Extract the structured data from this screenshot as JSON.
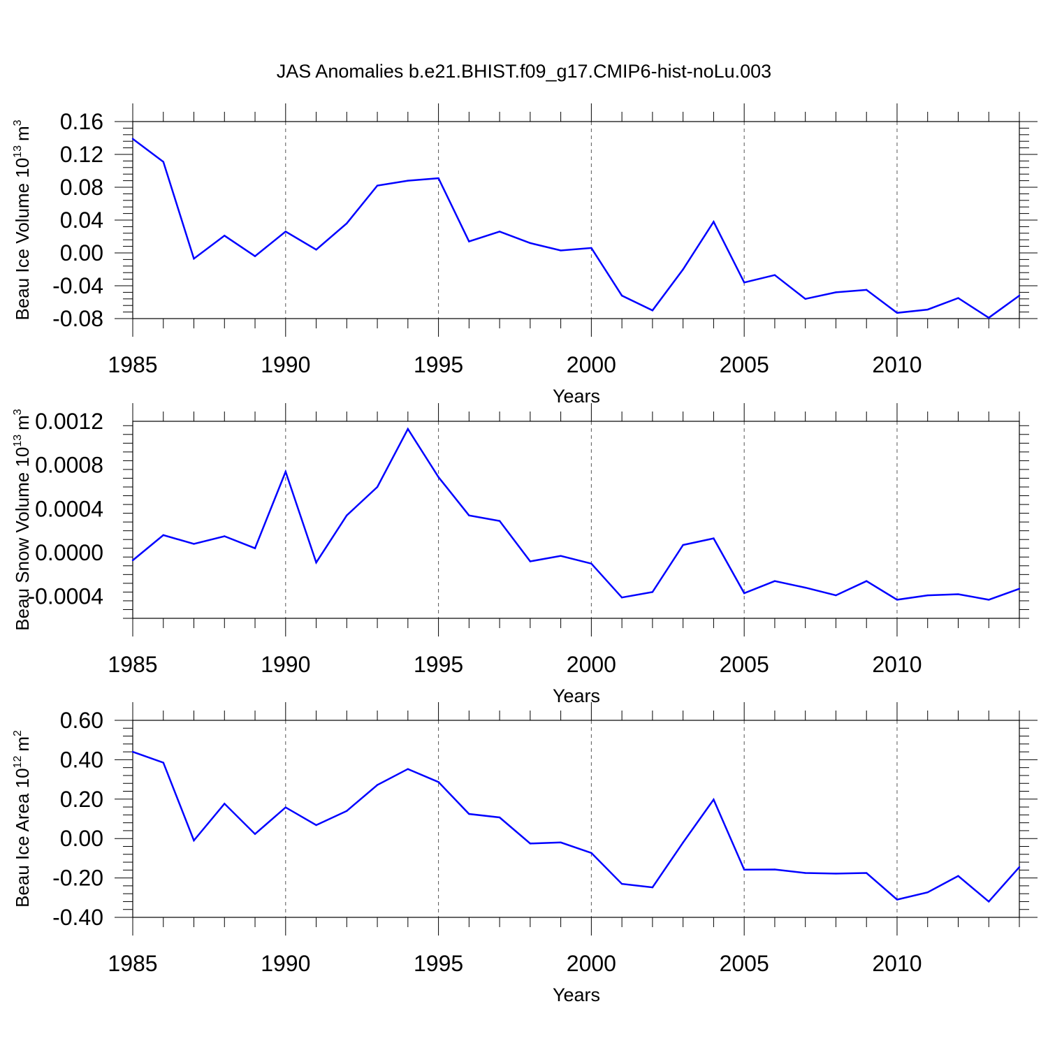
{
  "title": "JAS Anomalies b.e21.BHIST.f09_g17.CMIP6-hist-noLu.003",
  "colors": {
    "series": "#0000ff",
    "axis": "#000000",
    "grid": "#555555"
  },
  "chart_data": [
    {
      "type": "line",
      "ylabel": "Beau Ice Volume 10",
      "ylabel_exp": "13",
      "ylabel_unit": "m",
      "ylabel_unit_exp": "3",
      "xlabel": "Years",
      "xlim": [
        1985,
        2014
      ],
      "ylim": [
        -0.08,
        0.16
      ],
      "yticks": [
        -0.08,
        -0.04,
        0.0,
        0.04,
        0.08,
        0.12,
        0.16
      ],
      "ytick_labels": [
        "-0.08",
        "-0.04",
        "0.00",
        "0.04",
        "0.08",
        "0.12",
        "0.16"
      ],
      "xticks": [
        1985,
        1990,
        1995,
        2000,
        2005,
        2010
      ],
      "xtick_labels": [
        "1985",
        "1990",
        "1995",
        "2000",
        "2005",
        "2010"
      ],
      "grid_x": [
        1990,
        1995,
        2000,
        2005,
        2010
      ],
      "x": [
        1985,
        1986,
        1987,
        1988,
        1989,
        1990,
        1991,
        1992,
        1993,
        1994,
        1995,
        1996,
        1997,
        1998,
        1999,
        2000,
        2001,
        2002,
        2003,
        2004,
        2005,
        2006,
        2007,
        2008,
        2009,
        2010,
        2011,
        2012,
        2013,
        2014
      ],
      "y": [
        0.139,
        0.111,
        -0.007,
        0.021,
        -0.004,
        0.026,
        0.004,
        0.036,
        0.082,
        0.088,
        0.091,
        0.014,
        0.026,
        0.012,
        0.003,
        0.006,
        -0.052,
        -0.07,
        -0.02,
        0.038,
        -0.036,
        -0.027,
        -0.056,
        -0.048,
        -0.045,
        -0.073,
        -0.069,
        -0.055,
        -0.079,
        -0.052
      ]
    },
    {
      "type": "line",
      "ylabel": "Beau Snow Volume 10",
      "ylabel_exp": "13",
      "ylabel_unit": "m",
      "ylabel_unit_exp": "3",
      "xlabel": "Years",
      "xlim": [
        1985,
        2014
      ],
      "ylim": [
        -0.0006,
        0.0012
      ],
      "yticks": [
        -0.0004,
        0.0,
        0.0004,
        0.0008,
        0.0012
      ],
      "ytick_labels": [
        "-0.0004",
        "0.0000",
        "0.0004",
        "0.0008",
        "0.0012"
      ],
      "xticks": [
        1985,
        1990,
        1995,
        2000,
        2005,
        2010
      ],
      "xtick_labels": [
        "1985",
        "1990",
        "1995",
        "2000",
        "2005",
        "2010"
      ],
      "grid_x": [
        1990,
        1995,
        2000,
        2005,
        2010
      ],
      "x": [
        1985,
        1986,
        1987,
        1988,
        1989,
        1990,
        1991,
        1992,
        1993,
        1994,
        1995,
        1996,
        1997,
        1998,
        1999,
        2000,
        2001,
        2002,
        2003,
        2004,
        2005,
        2006,
        2007,
        2008,
        2009,
        2010,
        2011,
        2012,
        2013,
        2014
      ],
      "y": [
        -7e-05,
        0.00016,
        8e-05,
        0.00015,
        4e-05,
        0.00074,
        -9e-05,
        0.00034,
        0.0006,
        0.00113,
        0.00069,
        0.00034,
        0.00029,
        -8e-05,
        -3e-05,
        -0.0001,
        -0.00041,
        -0.00036,
        7e-05,
        0.00013,
        -0.00037,
        -0.00026,
        -0.00032,
        -0.00039,
        -0.00026,
        -0.00043,
        -0.00039,
        -0.00038,
        -0.00043,
        -0.00033
      ]
    },
    {
      "type": "line",
      "ylabel": "Beau Ice Area 10",
      "ylabel_exp": "12",
      "ylabel_unit": "m",
      "ylabel_unit_exp": "2",
      "xlabel": "Years",
      "xlim": [
        1985,
        2014
      ],
      "ylim": [
        -0.4,
        0.6
      ],
      "yticks": [
        -0.4,
        -0.2,
        0.0,
        0.2,
        0.4,
        0.6
      ],
      "ytick_labels": [
        "-0.40",
        "-0.20",
        "0.00",
        "0.20",
        "0.40",
        "0.60"
      ],
      "xticks": [
        1985,
        1990,
        1995,
        2000,
        2005,
        2010
      ],
      "xtick_labels": [
        "1985",
        "1990",
        "1995",
        "2000",
        "2005",
        "2010"
      ],
      "grid_x": [
        1990,
        1995,
        2000,
        2005,
        2010
      ],
      "x": [
        1985,
        1986,
        1987,
        1988,
        1989,
        1990,
        1991,
        1992,
        1993,
        1994,
        1995,
        1996,
        1997,
        1998,
        1999,
        2000,
        2001,
        2002,
        2003,
        2004,
        2005,
        2006,
        2007,
        2008,
        2009,
        2010,
        2011,
        2012,
        2013,
        2014
      ],
      "y": [
        0.44,
        0.385,
        -0.01,
        0.177,
        0.023,
        0.158,
        0.068,
        0.14,
        0.272,
        0.353,
        0.287,
        0.125,
        0.107,
        -0.025,
        -0.02,
        -0.073,
        -0.23,
        -0.248,
        -0.02,
        0.198,
        -0.158,
        -0.157,
        -0.175,
        -0.178,
        -0.175,
        -0.31,
        -0.273,
        -0.19,
        -0.32,
        -0.145
      ]
    }
  ]
}
